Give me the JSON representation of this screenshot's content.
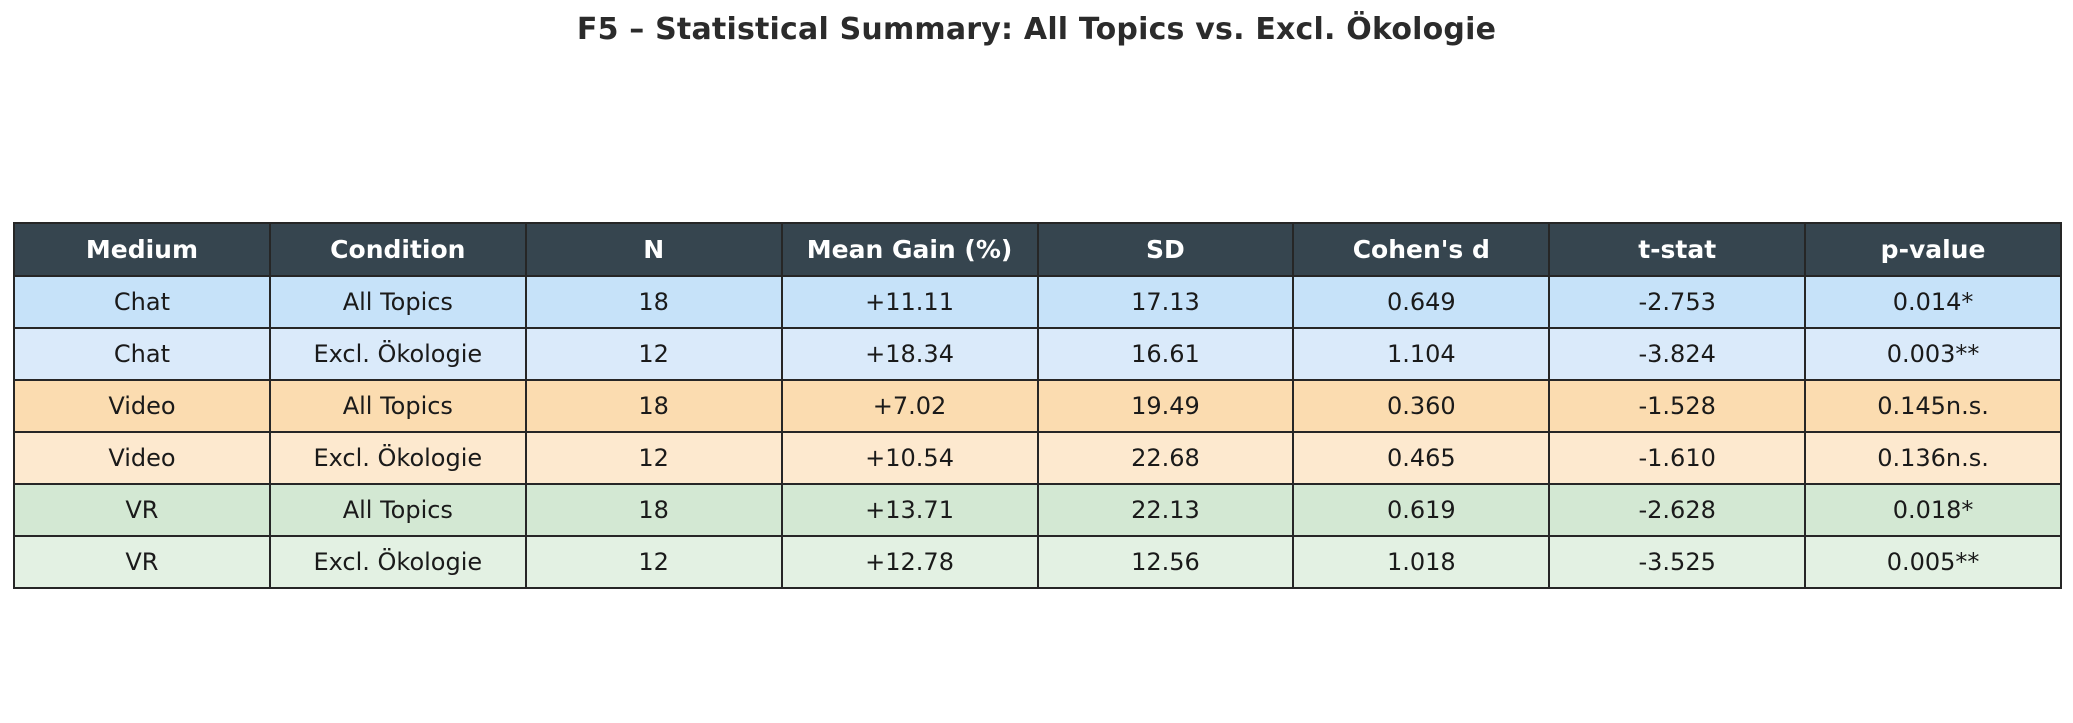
{
  "page": {
    "title": "F5 – Statistical Summary: All Topics vs. Excl. Ökologie"
  },
  "colors": {
    "header_bg": "#36454f",
    "header_text": "#ffffff",
    "border": "#262626",
    "title_text": "#2b2b2b",
    "body_text": "#1a1a1a",
    "row_chat_all": "#c6e2f9",
    "row_chat_excl": "#daeafa",
    "row_video_all": "#fbdcb0",
    "row_video_excl": "#fde9cf",
    "row_vr_all": "#d3e8d3",
    "row_vr_excl": "#e3f1e3"
  },
  "chart_data": {
    "type": "table",
    "title": "F5 – Statistical Summary: All Topics vs. Excl. Ökologie",
    "columns": [
      "Medium",
      "Condition",
      "N",
      "Mean Gain (%)",
      "SD",
      "Cohen's d",
      "t-stat",
      "p-value"
    ],
    "rows": [
      [
        "Chat",
        "All Topics",
        "18",
        "+11.11",
        "17.13",
        "0.649",
        "-2.753",
        "0.014*"
      ],
      [
        "Chat",
        "Excl. Ökologie",
        "12",
        "+18.34",
        "16.61",
        "1.104",
        "-3.824",
        "0.003**"
      ],
      [
        "Video",
        "All Topics",
        "18",
        "+7.02",
        "19.49",
        "0.360",
        "-1.528",
        "0.145n.s."
      ],
      [
        "Video",
        "Excl. Ökologie",
        "12",
        "+10.54",
        "22.68",
        "0.465",
        "-1.610",
        "0.136n.s."
      ],
      [
        "VR",
        "All Topics",
        "18",
        "+13.71",
        "22.13",
        "0.619",
        "-2.628",
        "0.018*"
      ],
      [
        "VR",
        "Excl. Ökologie",
        "12",
        "+12.78",
        "12.56",
        "1.018",
        "-3.525",
        "0.005**"
      ]
    ],
    "row_colors": [
      "#c6e2f9",
      "#daeafa",
      "#fbdcb0",
      "#fde9cf",
      "#d3e8d3",
      "#e3f1e3"
    ],
    "header_bg": "#36454f",
    "header_text_color": "#ffffff",
    "legend_position": "none",
    "grid": "full-cell-borders"
  }
}
